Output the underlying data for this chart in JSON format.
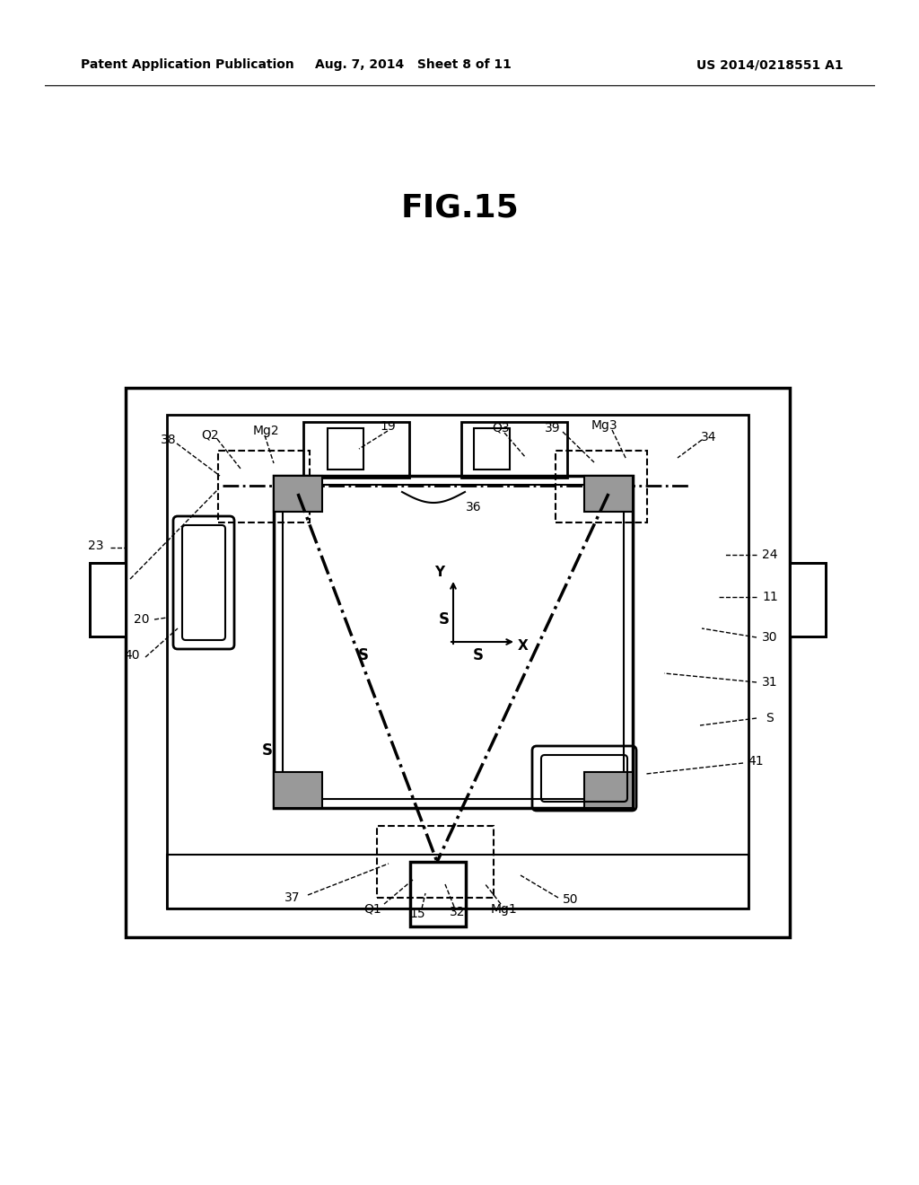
{
  "bg_color": "#ffffff",
  "title": "FIG.15",
  "header_left": "Patent Application Publication",
  "header_mid": "Aug. 7, 2014   Sheet 8 of 11",
  "header_right": "US 2014/0218551 A1"
}
